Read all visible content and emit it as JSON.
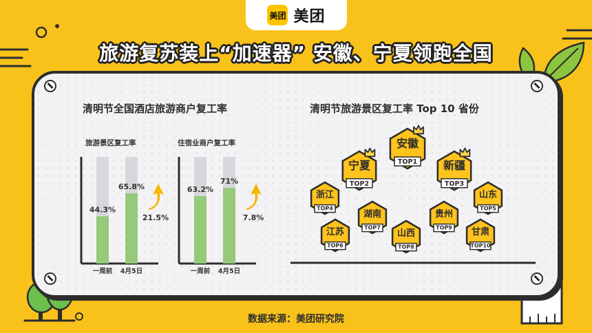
{
  "brand": {
    "badge": "美团",
    "name": "美团"
  },
  "headline": "旅游复苏装上“加速器” 安徽、宁夏领跑全国",
  "source": "数据来源：美团研究院",
  "colors": {
    "background": "#f9c21b",
    "bar_fill": "#96c97a",
    "bar_track": "#d9d7db",
    "arrow": "#f7b500",
    "hex": "#ffc31d",
    "outline": "#2d2d2d",
    "tree": "#6bbf4a"
  },
  "chart_data": [
    {
      "type": "bar",
      "title": "清明节全国酒店旅游商户复工率",
      "panels": [
        {
          "subtitle": "旅游景区复工率",
          "categories": [
            "一周前",
            "4月5日"
          ],
          "values": [
            44.3,
            65.8
          ],
          "labels": [
            "44.3%",
            "65.8%"
          ],
          "increase": "21.5%",
          "ylim": [
            0,
            100
          ]
        },
        {
          "subtitle": "住宿业商户复工率",
          "categories": [
            "一周前",
            "4月5日"
          ],
          "values": [
            63.2,
            71
          ],
          "labels": [
            "63.2%",
            "71%"
          ],
          "increase": "7.8%",
          "ylim": [
            0,
            100
          ]
        }
      ]
    },
    {
      "type": "table",
      "title": "清明节旅游景区复工率 Top 10 省份",
      "items": [
        {
          "rank": "TOP1",
          "province": "安徽"
        },
        {
          "rank": "TOP2",
          "province": "宁夏"
        },
        {
          "rank": "TOP3",
          "province": "新疆"
        },
        {
          "rank": "TOP4",
          "province": "浙江"
        },
        {
          "rank": "TOP5",
          "province": "山东"
        },
        {
          "rank": "TOP6",
          "province": "江苏"
        },
        {
          "rank": "TOP7",
          "province": "湖南"
        },
        {
          "rank": "TOP8",
          "province": "山西"
        },
        {
          "rank": "TOP9",
          "province": "贵州"
        },
        {
          "rank": "TOP10",
          "province": "甘肃"
        }
      ]
    }
  ]
}
